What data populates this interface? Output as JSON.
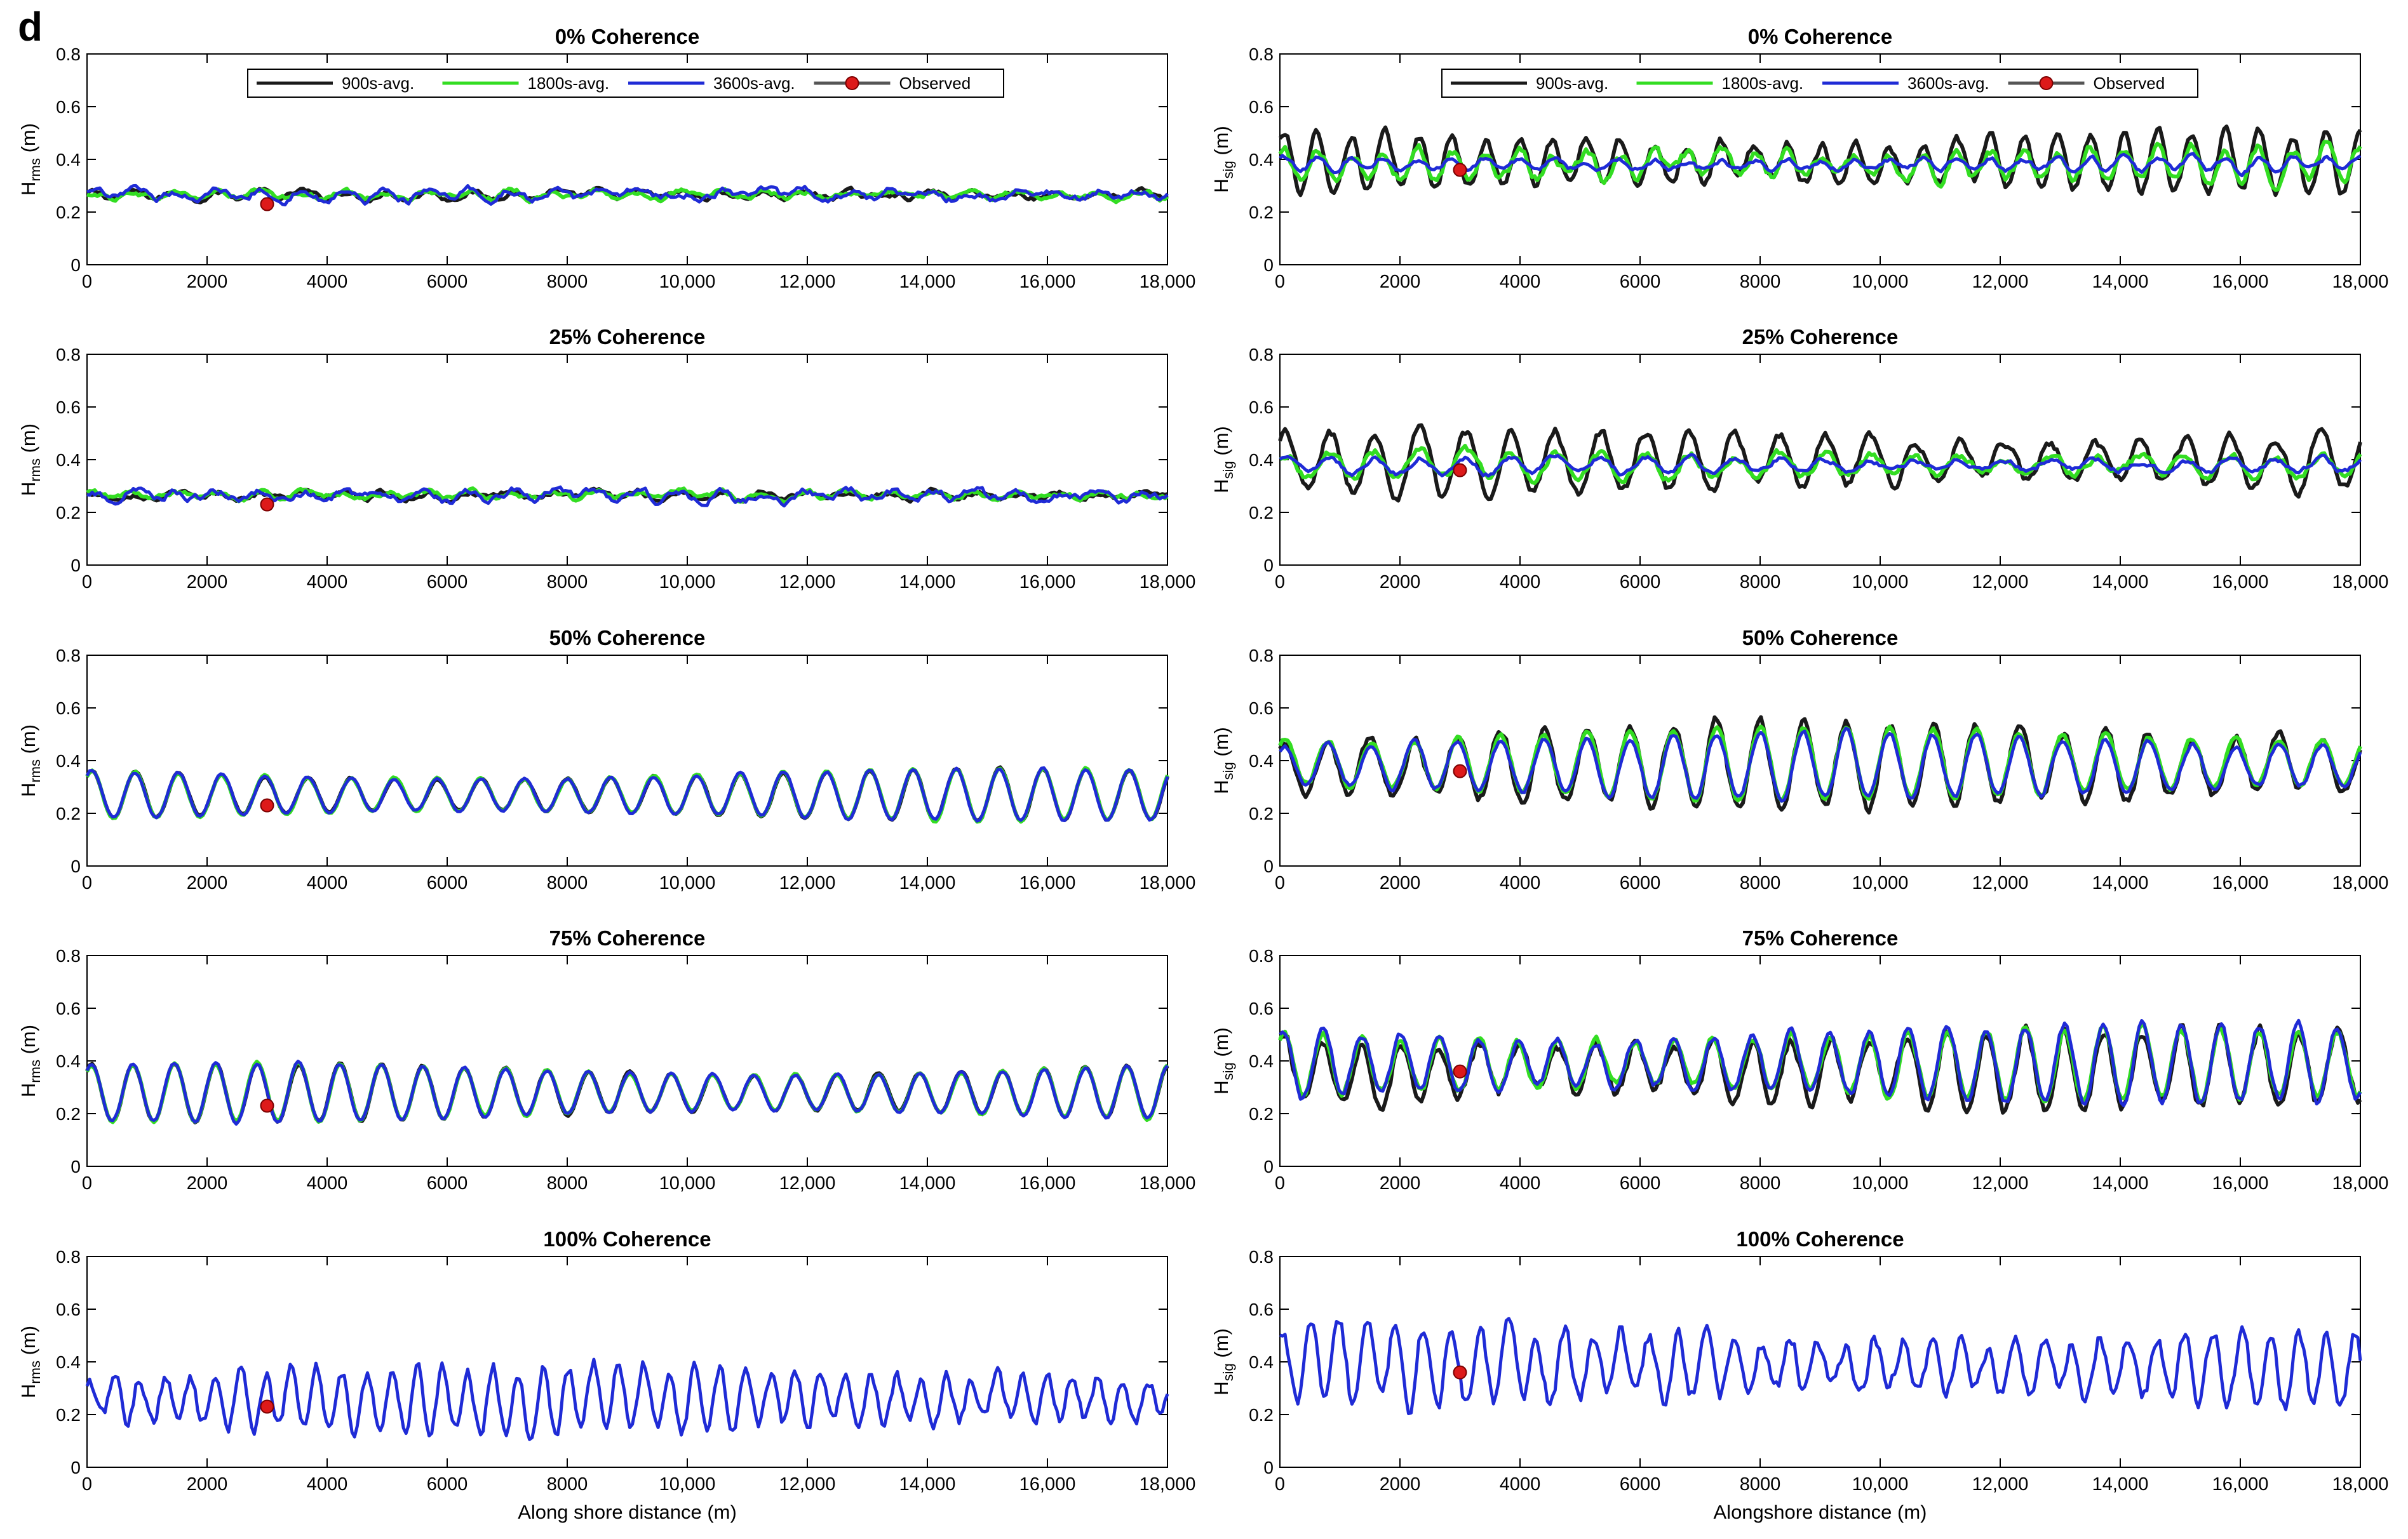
{
  "panel_label": "d",
  "legend": {
    "entries": [
      {
        "label": "900s-avg.",
        "color": "#1a1a1a",
        "marker": "line"
      },
      {
        "label": "1800s-avg.",
        "color": "#33dd22",
        "marker": "line"
      },
      {
        "label": "3600s-avg.",
        "color": "#1f2bd6",
        "marker": "line"
      },
      {
        "label": "Observed",
        "color": "#dd1a1a",
        "marker": "line-dot"
      }
    ]
  },
  "colors": {
    "s900": "#1a1a1a",
    "s1800": "#33dd22",
    "s3600": "#1f2bd6",
    "observed": "#dd1a1a",
    "axis": "#000000"
  },
  "x_tick_labels": [
    "0",
    "2000",
    "4000",
    "6000",
    "8000",
    "10,000",
    "12,000",
    "14,000",
    "16,000",
    "18,000"
  ],
  "y_tick_labels": [
    "0",
    "0.2",
    "0.4",
    "0.6",
    "0.8"
  ],
  "left_xlabel": "Along shore distance (m)",
  "right_xlabel": "Alongshore distance (m)",
  "chart_data": [
    {
      "type": "line",
      "column": "left",
      "row": 0,
      "title": "0% Coherence",
      "ylabel": "H",
      "ylabel_sub": "rms",
      "ylabel_unit": "(m)",
      "xlim": [
        0,
        18000
      ],
      "ylim": [
        0,
        0.8
      ],
      "legend": "top-center",
      "observed": {
        "x": 3000,
        "y": 0.23
      },
      "series": [
        {
          "name": "900s-avg.",
          "mean": 0.265,
          "amp": 0.012,
          "period": 700,
          "noise": 0.01
        },
        {
          "name": "1800s-avg.",
          "mean": 0.265,
          "amp": 0.012,
          "period": 700,
          "noise": 0.01
        },
        {
          "name": "3600s-avg.",
          "mean": 0.265,
          "amp": 0.015,
          "period": 700,
          "noise": 0.014
        }
      ]
    },
    {
      "type": "line",
      "column": "right",
      "row": 0,
      "title": "0% Coherence",
      "ylabel": "H",
      "ylabel_sub": "sig",
      "ylabel_unit": "(m)",
      "xlim": [
        0,
        18000
      ],
      "ylim": [
        0,
        0.8
      ],
      "legend": "top-center",
      "observed": {
        "x": 3000,
        "y": 0.36
      },
      "series": [
        {
          "name": "900s-avg.",
          "mean": 0.39,
          "amp": 0.09,
          "period": 560,
          "noise": 0.02
        },
        {
          "name": "1800s-avg.",
          "mean": 0.38,
          "amp": 0.05,
          "period": 560,
          "noise": 0.02
        },
        {
          "name": "3600s-avg.",
          "mean": 0.38,
          "amp": 0.02,
          "period": 560,
          "noise": 0.01
        }
      ]
    },
    {
      "type": "line",
      "column": "left",
      "row": 1,
      "title": "25% Coherence",
      "ylabel": "H",
      "ylabel_sub": "rms",
      "ylabel_unit": "(m)",
      "xlim": [
        0,
        18000
      ],
      "ylim": [
        0,
        0.8
      ],
      "observed": {
        "x": 3000,
        "y": 0.23
      },
      "series": [
        {
          "name": "900s-avg.",
          "mean": 0.265,
          "amp": 0.012,
          "period": 700,
          "noise": 0.01
        },
        {
          "name": "1800s-avg.",
          "mean": 0.265,
          "amp": 0.012,
          "period": 700,
          "noise": 0.01
        },
        {
          "name": "3600s-avg.",
          "mean": 0.265,
          "amp": 0.015,
          "period": 700,
          "noise": 0.015
        }
      ]
    },
    {
      "type": "line",
      "column": "right",
      "row": 1,
      "title": "25% Coherence",
      "ylabel": "H",
      "ylabel_sub": "sig",
      "ylabel_unit": "(m)",
      "xlim": [
        0,
        18000
      ],
      "ylim": [
        0,
        0.8
      ],
      "observed": {
        "x": 3000,
        "y": 0.36
      },
      "series": [
        {
          "name": "900s-avg.",
          "mean": 0.39,
          "amp": 0.1,
          "period": 750,
          "noise": 0.02
        },
        {
          "name": "1800s-avg.",
          "mean": 0.38,
          "amp": 0.04,
          "period": 750,
          "noise": 0.015
        },
        {
          "name": "3600s-avg.",
          "mean": 0.38,
          "amp": 0.025,
          "period": 750,
          "noise": 0.01
        }
      ]
    },
    {
      "type": "line",
      "column": "left",
      "row": 2,
      "title": "50% Coherence",
      "ylabel": "H",
      "ylabel_sub": "rms",
      "ylabel_unit": "(m)",
      "xlim": [
        0,
        18000
      ],
      "ylim": [
        0,
        0.8
      ],
      "observed": {
        "x": 3000,
        "y": 0.23
      },
      "series": [
        {
          "name": "900s-avg.",
          "mean": 0.27,
          "amp": 0.08,
          "period": 720,
          "noise": 0.004
        },
        {
          "name": "1800s-avg.",
          "mean": 0.27,
          "amp": 0.08,
          "period": 720,
          "noise": 0.004
        },
        {
          "name": "3600s-avg.",
          "mean": 0.27,
          "amp": 0.08,
          "period": 720,
          "noise": 0.004
        }
      ]
    },
    {
      "type": "line",
      "column": "right",
      "row": 2,
      "title": "50% Coherence",
      "ylabel": "H",
      "ylabel_sub": "sig",
      "ylabel_unit": "(m)",
      "xlim": [
        0,
        18000
      ],
      "ylim": [
        0,
        0.8
      ],
      "observed": {
        "x": 3000,
        "y": 0.36
      },
      "series": [
        {
          "name": "900s-avg.",
          "mean": 0.38,
          "amp": 0.13,
          "period": 720,
          "noise": 0.02
        },
        {
          "name": "1800s-avg.",
          "mean": 0.39,
          "amp": 0.11,
          "period": 720,
          "noise": 0.01
        },
        {
          "name": "3600s-avg.",
          "mean": 0.38,
          "amp": 0.1,
          "period": 720,
          "noise": 0.01
        }
      ]
    },
    {
      "type": "line",
      "column": "left",
      "row": 3,
      "title": "75% Coherence",
      "ylabel": "H",
      "ylabel_sub": "rms",
      "ylabel_unit": "(m)",
      "xlim": [
        0,
        18000
      ],
      "ylim": [
        0,
        0.8
      ],
      "observed": {
        "x": 3000,
        "y": 0.23
      },
      "series": [
        {
          "name": "900s-avg.",
          "mean": 0.28,
          "amp": 0.09,
          "period": 690,
          "noise": 0.004
        },
        {
          "name": "1800s-avg.",
          "mean": 0.28,
          "amp": 0.09,
          "period": 690,
          "noise": 0.004
        },
        {
          "name": "3600s-avg.",
          "mean": 0.28,
          "amp": 0.09,
          "period": 690,
          "noise": 0.004
        }
      ]
    },
    {
      "type": "line",
      "column": "right",
      "row": 3,
      "title": "75% Coherence",
      "ylabel": "H",
      "ylabel_sub": "sig",
      "ylabel_unit": "(m)",
      "xlim": [
        0,
        18000
      ],
      "ylim": [
        0,
        0.8
      ],
      "observed": {
        "x": 3000,
        "y": 0.36
      },
      "series": [
        {
          "name": "900s-avg.",
          "mean": 0.37,
          "amp": 0.12,
          "period": 650,
          "noise": 0.025
        },
        {
          "name": "1800s-avg.",
          "mean": 0.39,
          "amp": 0.11,
          "period": 650,
          "noise": 0.015
        },
        {
          "name": "3600s-avg.",
          "mean": 0.39,
          "amp": 0.12,
          "period": 650,
          "noise": 0.015
        }
      ]
    },
    {
      "type": "line",
      "column": "left",
      "row": 4,
      "title": "100% Coherence",
      "ylabel": "H",
      "ylabel_sub": "rms",
      "ylabel_unit": "(m)",
      "xlim": [
        0,
        18000
      ],
      "ylim": [
        0,
        0.8
      ],
      "observed": {
        "x": 3000,
        "y": 0.23
      },
      "series": [
        {
          "name": "3600s-avg.",
          "mean": 0.26,
          "amp": 0.1,
          "period": 420,
          "noise": 0.03
        }
      ]
    },
    {
      "type": "line",
      "column": "right",
      "row": 4,
      "title": "100% Coherence",
      "ylabel": "H",
      "ylabel_sub": "sig",
      "ylabel_unit": "(m)",
      "xlim": [
        0,
        18000
      ],
      "ylim": [
        0,
        0.8
      ],
      "observed": {
        "x": 3000,
        "y": 0.36
      },
      "series": [
        {
          "name": "3600s-avg.",
          "mean": 0.38,
          "amp": 0.12,
          "period": 470,
          "noise": 0.04
        }
      ]
    }
  ]
}
